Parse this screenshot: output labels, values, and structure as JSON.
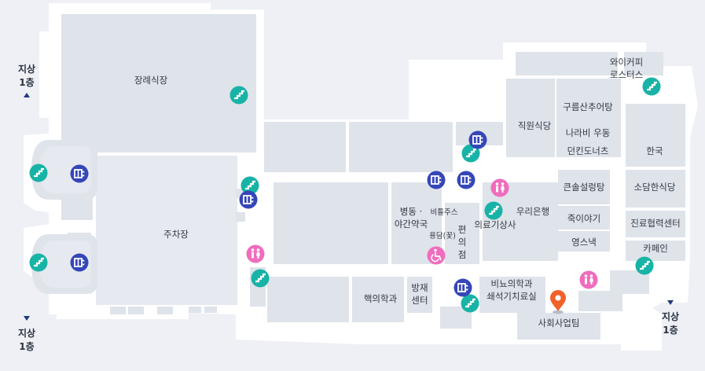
{
  "colors": {
    "escalator": "#17b3a6",
    "elevator": "#3546b8",
    "restroom": "#f06cbd",
    "accessible": "#f06cbd",
    "marker": "#f0612b",
    "room": "#dfe3ea",
    "wall": "#ffffff",
    "background": "#eef0f6"
  },
  "exits": {
    "left_up_line1": "지상",
    "left_up_line2": "1층",
    "left_down_line1": "지상",
    "left_down_line2": "1층",
    "right_down_line1": "지상",
    "right_down_line2": "1층"
  },
  "places": {
    "funeral_hall": "장례식장",
    "parking": "주차장",
    "pharmacy_line1": "병동 ·",
    "pharmacy_line2": "야간약국",
    "beautiful_store": "비틀주스",
    "flower_shop": "용담(꽃)",
    "convenience_line1": "편",
    "convenience_line2": "의",
    "convenience_line3": "점",
    "medical_supply": "의료기상사",
    "woori_bank": "우리은행",
    "staff_cafeteria": "직원식당",
    "wycoffee_line1": "와이커피",
    "wycoffee_line2": "로스터스",
    "gureum": "구름산추어탕",
    "narabi": "나라비 우동",
    "dunkin": "던킨도너츠",
    "hanguk": "한국",
    "keunsol": "큰솔설렁탕",
    "sodam": "소담한식당",
    "juk": "죽이야기",
    "yeongsu": "영스낵",
    "cooperation_center": "진료협력센터",
    "cafe": "카페인",
    "nuclear_medicine": "핵의학과",
    "radiation_line1": "방재",
    "radiation_line2": "센터",
    "urology_line1": "비뇨의학과",
    "urology_line2": "쇄석기치료실",
    "social_work": "사회사업팀"
  },
  "icons": {
    "escalator": "escalator-icon",
    "elevator": "elevator-icon",
    "restroom": "restroom-icon",
    "accessible": "wheelchair-icon",
    "marker": "location-pin-icon"
  }
}
